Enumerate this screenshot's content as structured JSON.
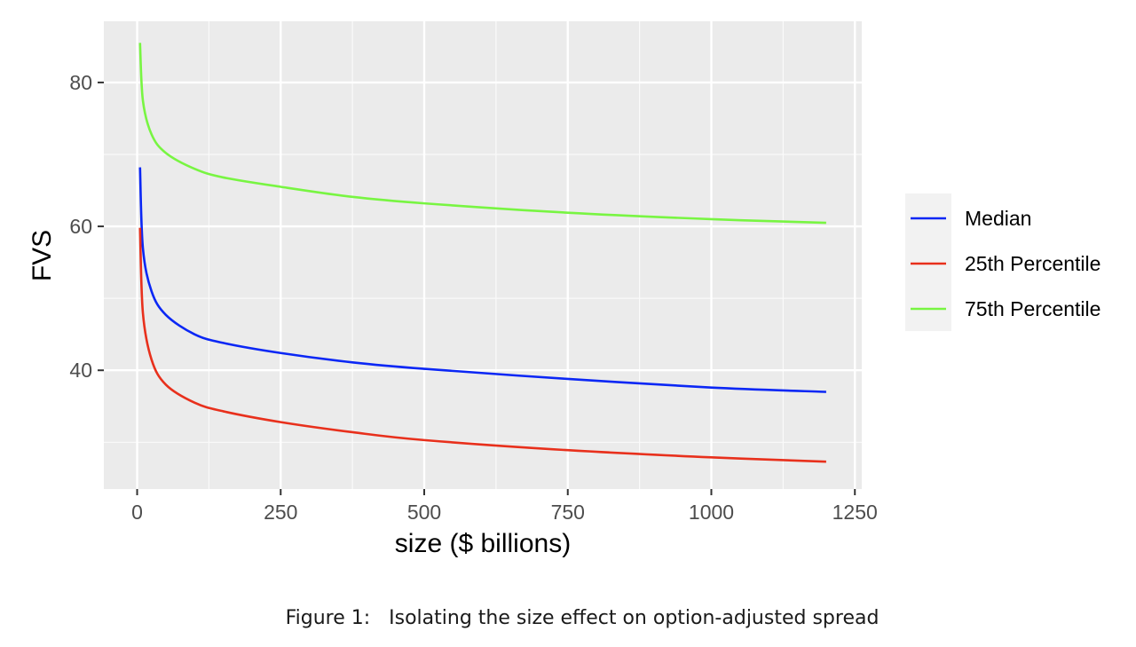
{
  "chart_data": {
    "type": "line",
    "title": "",
    "xlabel": "size ($ billions)",
    "ylabel": "FVS",
    "xlim": [
      -58,
      1262
    ],
    "ylim": [
      23.5,
      88.5
    ],
    "x_ticks": [
      0,
      250,
      500,
      750,
      1000,
      1250
    ],
    "y_ticks": [
      40,
      60,
      80
    ],
    "minor_grid_x": [
      125,
      375,
      625,
      875,
      1125
    ],
    "minor_grid_y": [
      30,
      50,
      70
    ],
    "grid": true,
    "legend": "right",
    "background": "#ebebeb",
    "series": [
      {
        "name": "Median",
        "color": "#0b27f5",
        "x": [
          5,
          10,
          25,
          50,
          100,
          150,
          250,
          375,
          500,
          750,
          1000,
          1200
        ],
        "y": [
          68.2,
          57.0,
          51.0,
          47.7,
          45.0,
          43.8,
          42.4,
          41.1,
          40.2,
          38.8,
          37.6,
          37.0
        ]
      },
      {
        "name": "25th Percentile",
        "color": "#e8301c",
        "x": [
          5,
          10,
          25,
          50,
          100,
          150,
          250,
          375,
          500,
          750,
          1000,
          1200
        ],
        "y": [
          59.8,
          48.0,
          41.5,
          38.0,
          35.5,
          34.3,
          32.8,
          31.4,
          30.3,
          28.9,
          27.9,
          27.3
        ]
      },
      {
        "name": "75th Percentile",
        "color": "#78f542",
        "x": [
          5,
          10,
          25,
          50,
          100,
          150,
          250,
          375,
          500,
          750,
          1000,
          1200
        ],
        "y": [
          85.5,
          77.5,
          72.8,
          70.2,
          68.0,
          66.8,
          65.5,
          64.1,
          63.2,
          61.9,
          61.0,
          60.5
        ]
      }
    ]
  },
  "caption": "Figure 1:   Isolating the size effect on option-adjusted spread"
}
